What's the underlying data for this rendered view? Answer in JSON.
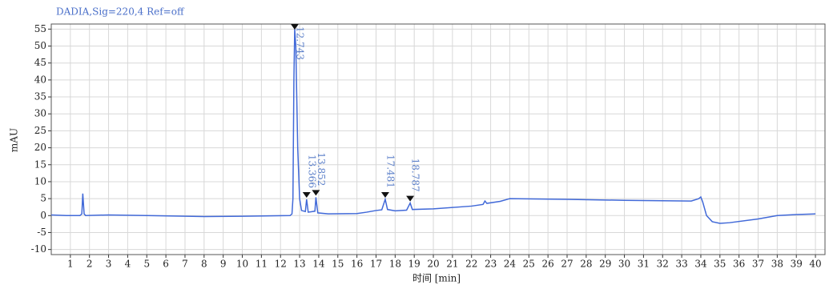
{
  "chart_data": {
    "type": "line",
    "title": "DADIA,Sig=220,4  Ref=off",
    "xlabel": "时间 [min]",
    "ylabel": "mAU",
    "xlim": [
      0,
      40.5
    ],
    "ylim": [
      -11.5,
      56.5
    ],
    "xticks": [
      1,
      2,
      3,
      4,
      5,
      6,
      7,
      8,
      9,
      10,
      11,
      12,
      13,
      14,
      15,
      16,
      17,
      18,
      19,
      20,
      21,
      22,
      23,
      24,
      25,
      26,
      27,
      28,
      29,
      30,
      31,
      32,
      33,
      34,
      35,
      36,
      37,
      38,
      39,
      40
    ],
    "yticks": [
      -10,
      -5,
      0,
      5,
      10,
      15,
      20,
      25,
      30,
      35,
      40,
      45,
      50,
      55
    ],
    "grid": true,
    "series": [
      {
        "color": "#4169d8",
        "x": [
          0,
          0.8,
          1.5,
          1.6,
          1.65,
          1.72,
          1.8,
          3,
          5,
          8,
          10,
          12.5,
          12.6,
          12.65,
          12.7,
          12.743,
          12.8,
          12.9,
          13.0,
          13.1,
          13.3,
          13.366,
          13.45,
          13.8,
          13.852,
          13.95,
          14.5,
          16,
          16.5,
          17,
          17.3,
          17.481,
          17.6,
          18,
          18.6,
          18.787,
          18.9,
          20,
          22,
          22.6,
          22.7,
          22.8,
          23.5,
          24,
          27,
          30,
          33.5,
          33.9,
          34.0,
          34.1,
          34.3,
          34.6,
          35,
          35.5,
          37,
          38,
          39,
          40
        ],
        "values": [
          0.2,
          0,
          0,
          0.5,
          6.5,
          0.5,
          0,
          0.2,
          0,
          -0.3,
          -0.2,
          0,
          0.5,
          5,
          40,
          55,
          50,
          20,
          5,
          1.5,
          1.2,
          4.8,
          1,
          1.3,
          5.4,
          0.8,
          0.5,
          0.6,
          1,
          1.5,
          1.7,
          4.8,
          1.8,
          1.4,
          1.6,
          3.7,
          1.8,
          2,
          2.8,
          3.3,
          4.3,
          3.6,
          4.2,
          5,
          4.8,
          4.5,
          4.3,
          5,
          5.5,
          4,
          0,
          -1.8,
          -2.3,
          -2.1,
          -1,
          0,
          0.3,
          0.5
        ]
      }
    ],
    "peaks": [
      {
        "x": 12.743,
        "y": 55
      },
      {
        "x": 13.366,
        "y": 4.8
      },
      {
        "x": 13.852,
        "y": 5.4
      },
      {
        "x": 17.481,
        "y": 4.8
      },
      {
        "x": 18.787,
        "y": 3.7
      }
    ]
  }
}
